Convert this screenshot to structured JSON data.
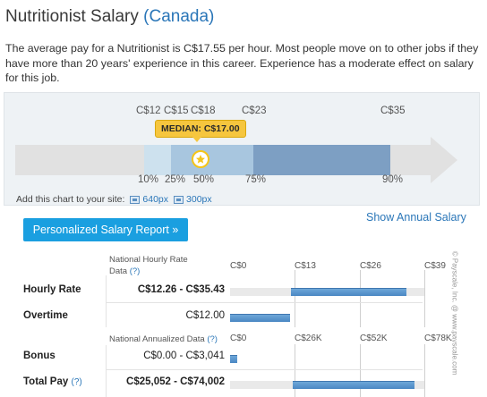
{
  "header": {
    "title": "Nutritionist Salary",
    "country": "(Canada)",
    "description": "The average pay for a Nutritionist is C$17.55 per hour. Most people move on to other jobs if they have more than 20 years' experience in this career. Experience has a moderate effect on salary for this job."
  },
  "range_chart": {
    "top_ticks": [
      "C$12",
      "C$15",
      "C$18",
      "C$23",
      "C$35"
    ],
    "median_label": "MEDIAN: C$17.00",
    "percentiles": [
      "10%",
      "25%",
      "50%",
      "75%",
      "90%"
    ],
    "colors": {
      "band_light": "#cde1ee",
      "band_mid": "#a8c6df",
      "band_dark": "#7d9fc3",
      "median": "#f6c63e",
      "arrow": "#e1e1e1"
    },
    "median_icon": "star-icon"
  },
  "embed": {
    "label": "Add this chart to your site:",
    "options": [
      "640px",
      "300px"
    ],
    "icon": "image-icon"
  },
  "links": {
    "show_annual": "Show Annual Salary"
  },
  "report_button": {
    "label": "Personalized Salary Report »",
    "color": "#1a9fe0"
  },
  "hourly_table": {
    "header_line1": "National Hourly Rate",
    "header_line2": "Data",
    "help": "(?)",
    "axis": [
      "C$0",
      "C$13",
      "C$26",
      "C$39"
    ],
    "axis_max": 39,
    "rows": [
      {
        "label": "Hourly Rate",
        "value": "C$12.26 - C$35.43",
        "min": 12.26,
        "max": 35.43,
        "bold": true
      },
      {
        "label": "Overtime",
        "value": "C$12.00",
        "min": 0,
        "max": 12.0,
        "bold": false
      }
    ]
  },
  "annual_table": {
    "header": "National Annualized Data",
    "help": "(?)",
    "axis": [
      "C$0",
      "C$26K",
      "C$52K",
      "C$78K"
    ],
    "axis_max": 78000,
    "rows": [
      {
        "label": "Bonus",
        "help": "",
        "value": "C$0.00 - C$3,041",
        "min": 0,
        "max": 3041,
        "bold": false
      },
      {
        "label": "Total Pay",
        "help": "(?)",
        "value": "C$25,052 - C$74,002",
        "min": 25052,
        "max": 74002,
        "bold": true
      }
    ]
  },
  "watermark": "© Payscale, Inc. @ www.payscale.com"
}
